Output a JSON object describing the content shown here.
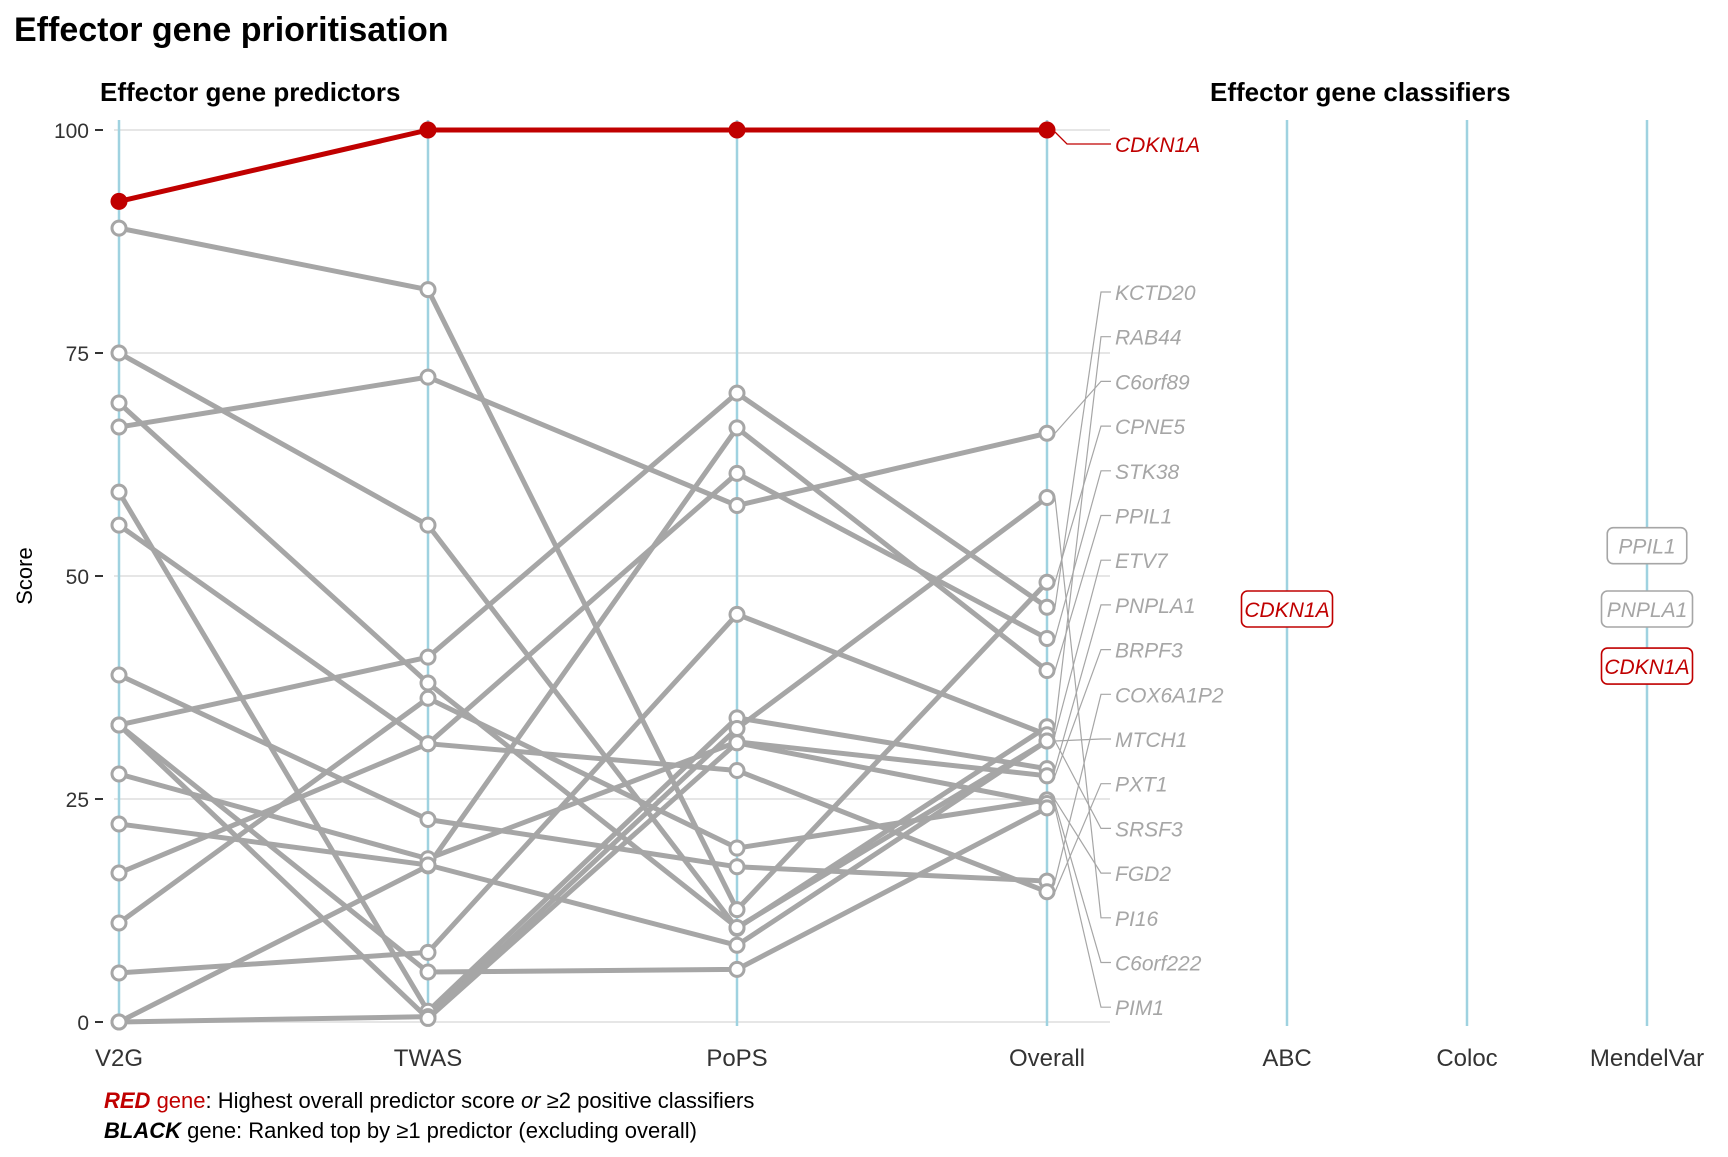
{
  "title": "Effector gene prioritisation",
  "colors": {
    "highlight": "#c00000",
    "gene_line": "#a6a6a6",
    "axis_line": "#9fd2e0",
    "grid": "#e6e6e6"
  },
  "legend": {
    "red_word": "RED",
    "red_gene": " gene",
    "red_text": ": Highest overall predictor score ",
    "red_or": "or",
    "red_text2": " ≥2 positive classifiers",
    "black_word": "BLACK",
    "black_text": " gene: Ranked top by ≥1 predictor (excluding overall)"
  },
  "chart_data": [
    {
      "type": "line",
      "title": "Effector gene predictors",
      "ylabel": "Score",
      "ylim": [
        0,
        100
      ],
      "yticks": [
        0,
        25,
        50,
        75,
        100
      ],
      "categories": [
        "V2G",
        "TWAS",
        "PoPS",
        "Overall"
      ],
      "grid": true,
      "series": [
        {
          "name": "CDKN1A",
          "highlight": true,
          "values": [
            92,
            100,
            100,
            100
          ]
        },
        {
          "name": "KCTD20",
          "values": [
            33.3,
            40.9,
            70.5,
            46.5
          ]
        },
        {
          "name": "RAB44",
          "values": [
            75,
            55.7,
            10.5,
            33.1
          ]
        },
        {
          "name": "C6orf89",
          "values": [
            66.7,
            72.3,
            57.9,
            66
          ]
        },
        {
          "name": "CPNE5",
          "values": [
            89,
            82.1,
            12.6,
            49.3
          ]
        },
        {
          "name": "STK38",
          "values": [
            55.7,
            31.2,
            61.5,
            43
          ]
        },
        {
          "name": "PPIL1",
          "values": [
            0,
            17.5,
            66.6,
            39.4
          ]
        },
        {
          "name": "ETV7",
          "values": [
            5.5,
            7.8,
            45.7,
            32.2
          ]
        },
        {
          "name": "PNPLA1",
          "values": [
            59.4,
            1.2,
            34.1,
            28.4
          ]
        },
        {
          "name": "BRPF3",
          "values": [
            27.8,
            18.3,
            31.4,
            27.6
          ]
        },
        {
          "name": "COX6A1P2",
          "values": [
            38.9,
            22.7,
            17.4,
            15.8
          ]
        },
        {
          "name": "MTCH1",
          "values": [
            69.4,
            38,
            10.6,
            31.5
          ]
        },
        {
          "name": "PXT1",
          "values": [
            16.7,
            31.2,
            28.2,
            14.6
          ]
        },
        {
          "name": "SRSF3",
          "values": [
            22.2,
            17.6,
            8.6,
            31.5
          ]
        },
        {
          "name": "FGD2",
          "values": [
            11.1,
            36.3,
            19.5,
            24.9
          ]
        },
        {
          "name": "PI16",
          "values": [
            0,
            0.6,
            32.9,
            58.8
          ]
        },
        {
          "name": "C6orf222",
          "values": [
            33.3,
            0.4,
            31.3,
            24.5
          ]
        },
        {
          "name": "PIM1",
          "values": [
            33.3,
            5.6,
            5.9,
            24
          ]
        }
      ],
      "labels_order": [
        "KCTD20",
        "RAB44",
        "C6orf89",
        "CPNE5",
        "STK38",
        "PPIL1",
        "ETV7",
        "PNPLA1",
        "BRPF3",
        "COX6A1P2",
        "MTCH1",
        "PXT1",
        "SRSF3",
        "FGD2",
        "PI16",
        "C6orf222",
        "PIM1"
      ],
      "highlight_label": "CDKN1A"
    },
    {
      "type": "table",
      "title": "Effector gene classifiers",
      "categories": [
        "ABC",
        "Coloc",
        "MendelVar"
      ],
      "entries": [
        {
          "axis": "ABC",
          "gene": "CDKN1A",
          "value": 46.3,
          "highlight": true
        },
        {
          "axis": "MendelVar",
          "gene": "PPIL1",
          "value": 53.4,
          "highlight": false
        },
        {
          "axis": "MendelVar",
          "gene": "PNPLA1",
          "value": 46.3,
          "highlight": false
        },
        {
          "axis": "MendelVar",
          "gene": "CDKN1A",
          "value": 39.9,
          "highlight": true
        }
      ]
    }
  ]
}
